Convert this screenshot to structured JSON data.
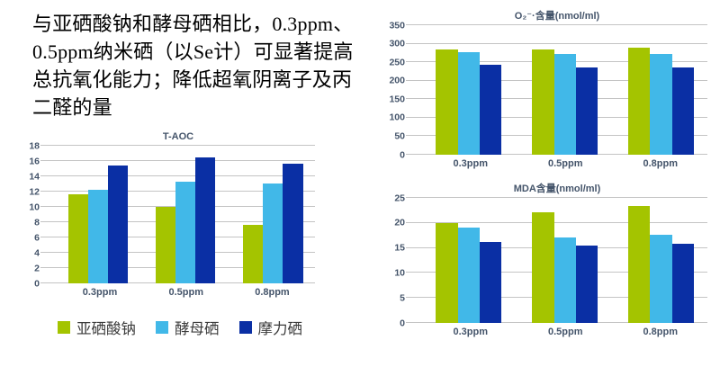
{
  "intro": {
    "lines": [
      "与亚硒酸钠和酵母硒相比，0.3ppm、",
      "0.5ppm纳米硒（以Se计）可显著提高",
      "总抗氧化能力；降低超氧阴离子及丙",
      "二醛的量"
    ]
  },
  "palette": {
    "series_green": "#A4C400",
    "series_light_blue": "#41B8E8",
    "series_dark_blue": "#0A2FA4",
    "axis_text": "#44546A",
    "gridline": "#C4C4C4",
    "legend_text": "#3B3B3B"
  },
  "legend": {
    "items": [
      {
        "label": "亚硒酸钠",
        "color": "#A4C400"
      },
      {
        "label": "酵母硒",
        "color": "#41B8E8"
      },
      {
        "label": "摩力硒",
        "color": "#0A2FA4"
      }
    ]
  },
  "chart_data": [
    {
      "id": "t-aoc",
      "type": "bar",
      "title": "T-AOC",
      "categories": [
        "0.3ppm",
        "0.5ppm",
        "0.8ppm"
      ],
      "series": [
        {
          "name": "亚硒酸钠",
          "color": "#A4C400",
          "values": [
            11.7,
            10.0,
            7.6
          ]
        },
        {
          "name": "酵母硒",
          "color": "#41B8E8",
          "values": [
            12.2,
            13.3,
            13.1
          ]
        },
        {
          "name": "摩力硒",
          "color": "#0A2FA4",
          "values": [
            15.4,
            16.5,
            15.7
          ]
        }
      ],
      "ylim": [
        0,
        18
      ],
      "ytick_step": 2,
      "grid": true,
      "legend_position": "bottom"
    },
    {
      "id": "superoxide-content",
      "type": "bar",
      "title": "O₂⁻·含量(nmol/ml)",
      "categories": [
        "0.3ppm",
        "0.5ppm",
        "0.8ppm"
      ],
      "series": [
        {
          "name": "亚硒酸钠",
          "color": "#A4C400",
          "values": [
            284,
            284,
            289
          ]
        },
        {
          "name": "酵母硒",
          "color": "#41B8E8",
          "values": [
            278,
            272,
            272
          ]
        },
        {
          "name": "摩力硒",
          "color": "#0A2FA4",
          "values": [
            242,
            237,
            237
          ]
        }
      ],
      "ylim": [
        0,
        350
      ],
      "ytick_step": 50,
      "grid": true,
      "legend_position": "none"
    },
    {
      "id": "mda-content",
      "type": "bar",
      "title": "MDA含量(nmol/ml)",
      "categories": [
        "0.3ppm",
        "0.5ppm",
        "0.8ppm"
      ],
      "series": [
        {
          "name": "亚硒酸钠",
          "color": "#A4C400",
          "values": [
            20.0,
            22.2,
            23.3
          ]
        },
        {
          "name": "酵母硒",
          "color": "#41B8E8",
          "values": [
            19.0,
            17.0,
            17.7
          ]
        },
        {
          "name": "摩力硒",
          "color": "#0A2FA4",
          "values": [
            16.2,
            15.4,
            15.8
          ]
        }
      ],
      "ylim": [
        0,
        25
      ],
      "ytick_step": 5,
      "grid": true,
      "legend_position": "none"
    }
  ]
}
